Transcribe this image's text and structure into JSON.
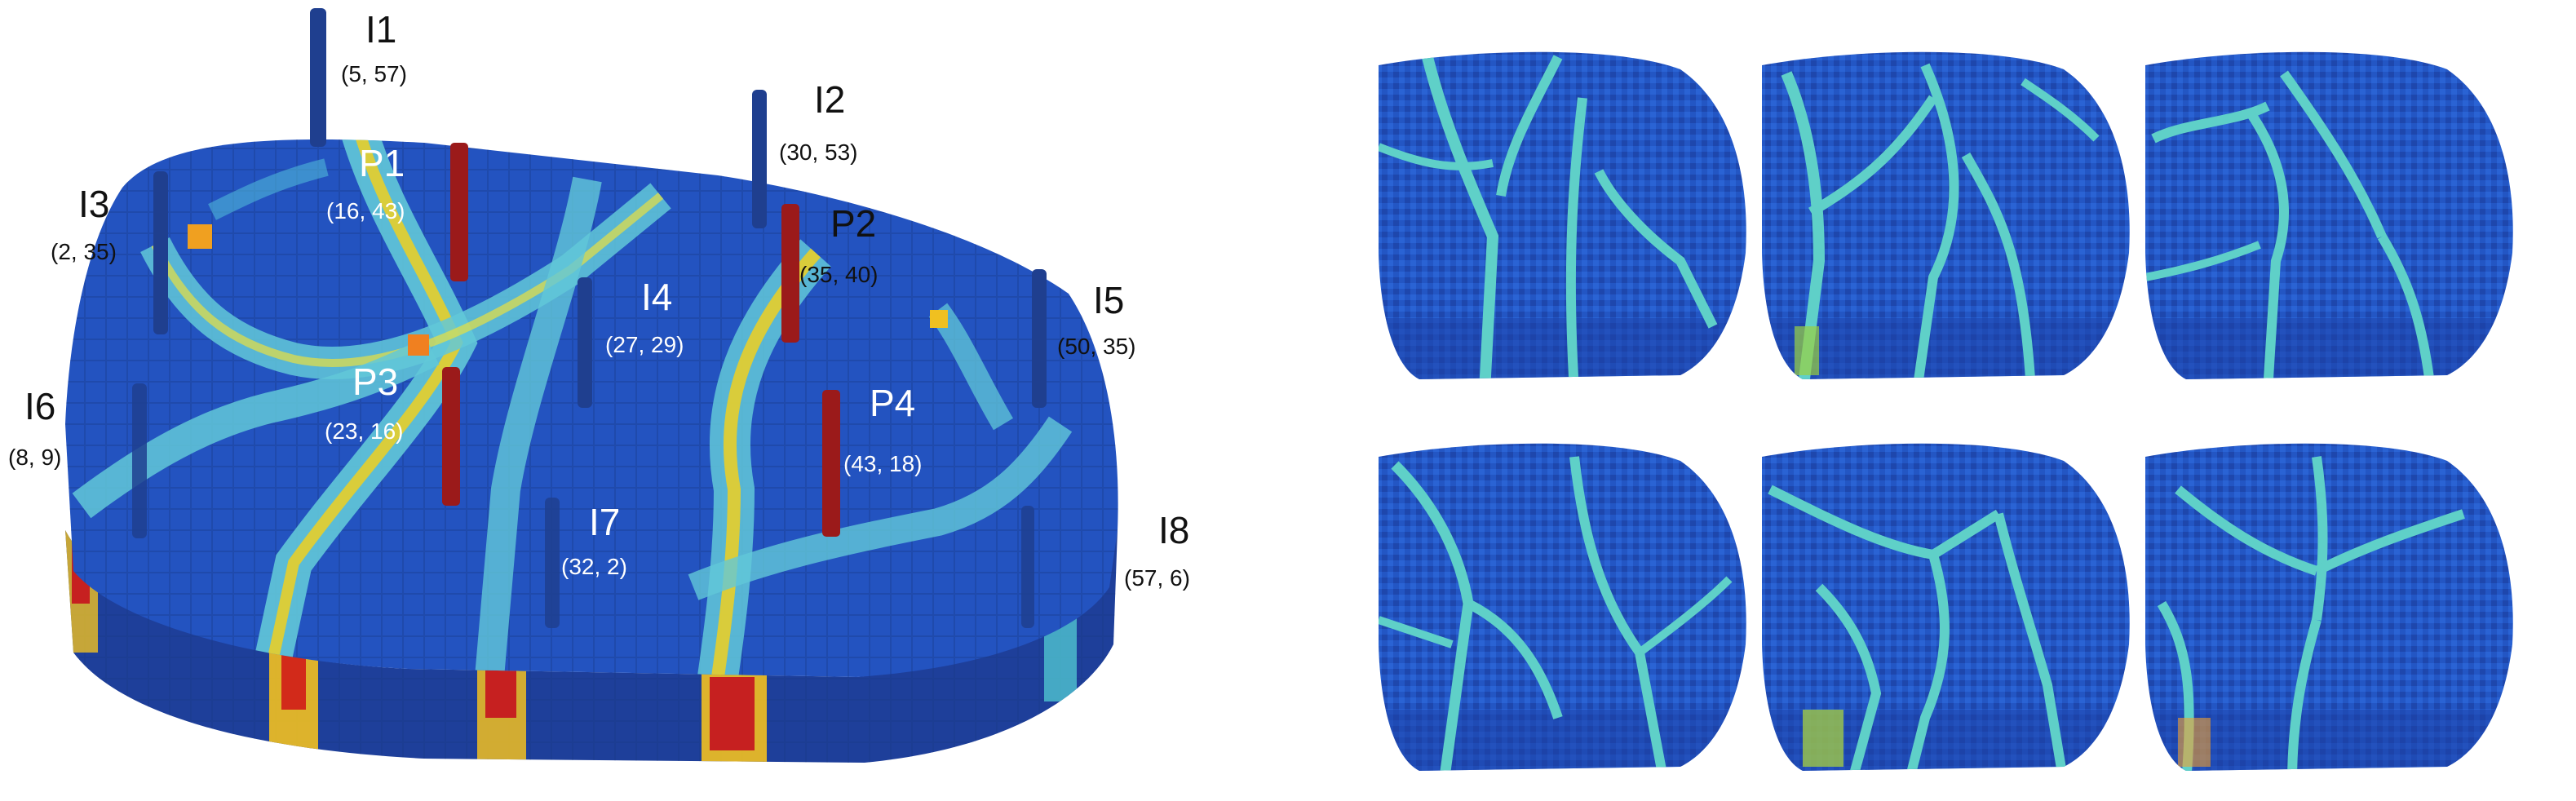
{
  "main_reservoir": {
    "wells": [
      {
        "id": "I1",
        "coords": "(5, 57)",
        "type": "injector"
      },
      {
        "id": "I2",
        "coords": "(30, 53)",
        "type": "injector"
      },
      {
        "id": "I3",
        "coords": "(2, 35)",
        "type": "injector"
      },
      {
        "id": "I4",
        "coords": "(27, 29)",
        "type": "injector"
      },
      {
        "id": "I5",
        "coords": "(50, 35)",
        "type": "injector"
      },
      {
        "id": "I6",
        "coords": "(8, 9)",
        "type": "injector"
      },
      {
        "id": "I7",
        "coords": "(32, 2)",
        "type": "injector"
      },
      {
        "id": "I8",
        "coords": "(57, 6)",
        "type": "injector"
      },
      {
        "id": "P1",
        "coords": "(16, 43)",
        "type": "producer"
      },
      {
        "id": "P2",
        "coords": "(35, 40)",
        "type": "producer"
      },
      {
        "id": "P3",
        "coords": "(23, 16)",
        "type": "producer"
      },
      {
        "id": "P4",
        "coords": "(43, 18)",
        "type": "producer"
      }
    ]
  },
  "colors": {
    "injector": "#1f3f8f",
    "producer": "#9b1a1a",
    "matrix": "#1f4fb8",
    "channel": "#6fd7d0",
    "hot": "#f0d020",
    "red": "#c62020"
  },
  "realizations_count": 6
}
